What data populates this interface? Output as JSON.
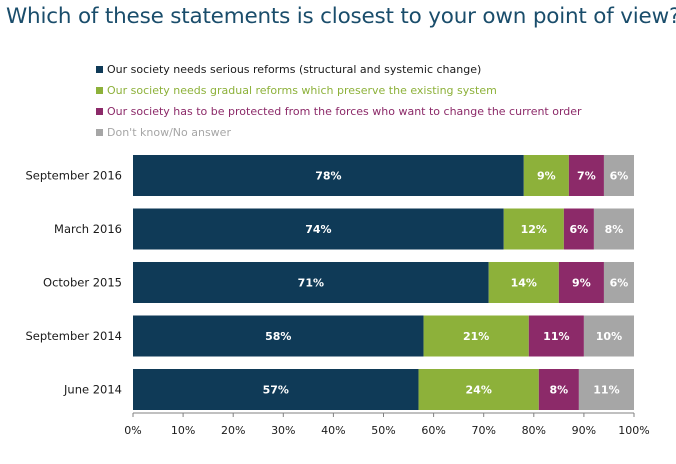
{
  "chart_data": {
    "type": "bar",
    "orientation": "horizontal",
    "stacked": true,
    "title": "Which of these statements is closest to your own point of view?",
    "xlabel": "",
    "ylabel": "",
    "xlim": [
      0,
      100
    ],
    "ticks": [
      "0%",
      "10%",
      "20%",
      "30%",
      "40%",
      "50%",
      "60%",
      "70%",
      "80%",
      "90%",
      "100%"
    ],
    "grid": false,
    "legend_position": "top",
    "categories": [
      "September 2016",
      "March 2016",
      "October 2015",
      "September 2014",
      "June 2014"
    ],
    "series": [
      {
        "name": "Our society needs serious reforms (structural and systemic change)",
        "color": "#0f3a57",
        "values": [
          78,
          74,
          71,
          58,
          57
        ],
        "labels": [
          "78%",
          "74%",
          "71%",
          "58%",
          "57%"
        ]
      },
      {
        "name": "Our society needs gradual reforms which preserve the existing system",
        "color": "#8db13a",
        "values": [
          9,
          12,
          14,
          21,
          24
        ],
        "labels": [
          "9%",
          "12%",
          "14%",
          "21%",
          "24%"
        ]
      },
      {
        "name": "Our society has to be protected from the forces who want to change the current order",
        "color": "#8c2a69",
        "values": [
          7,
          6,
          9,
          11,
          8
        ],
        "labels": [
          "7%",
          "6%",
          "9%",
          "11%",
          "8%"
        ]
      },
      {
        "name": "Don't know/No answer",
        "color": "#a6a6a6",
        "values": [
          6,
          8,
          6,
          10,
          11
        ],
        "labels": [
          "6%",
          "8%",
          "6%",
          "10%",
          "11%"
        ]
      }
    ]
  }
}
